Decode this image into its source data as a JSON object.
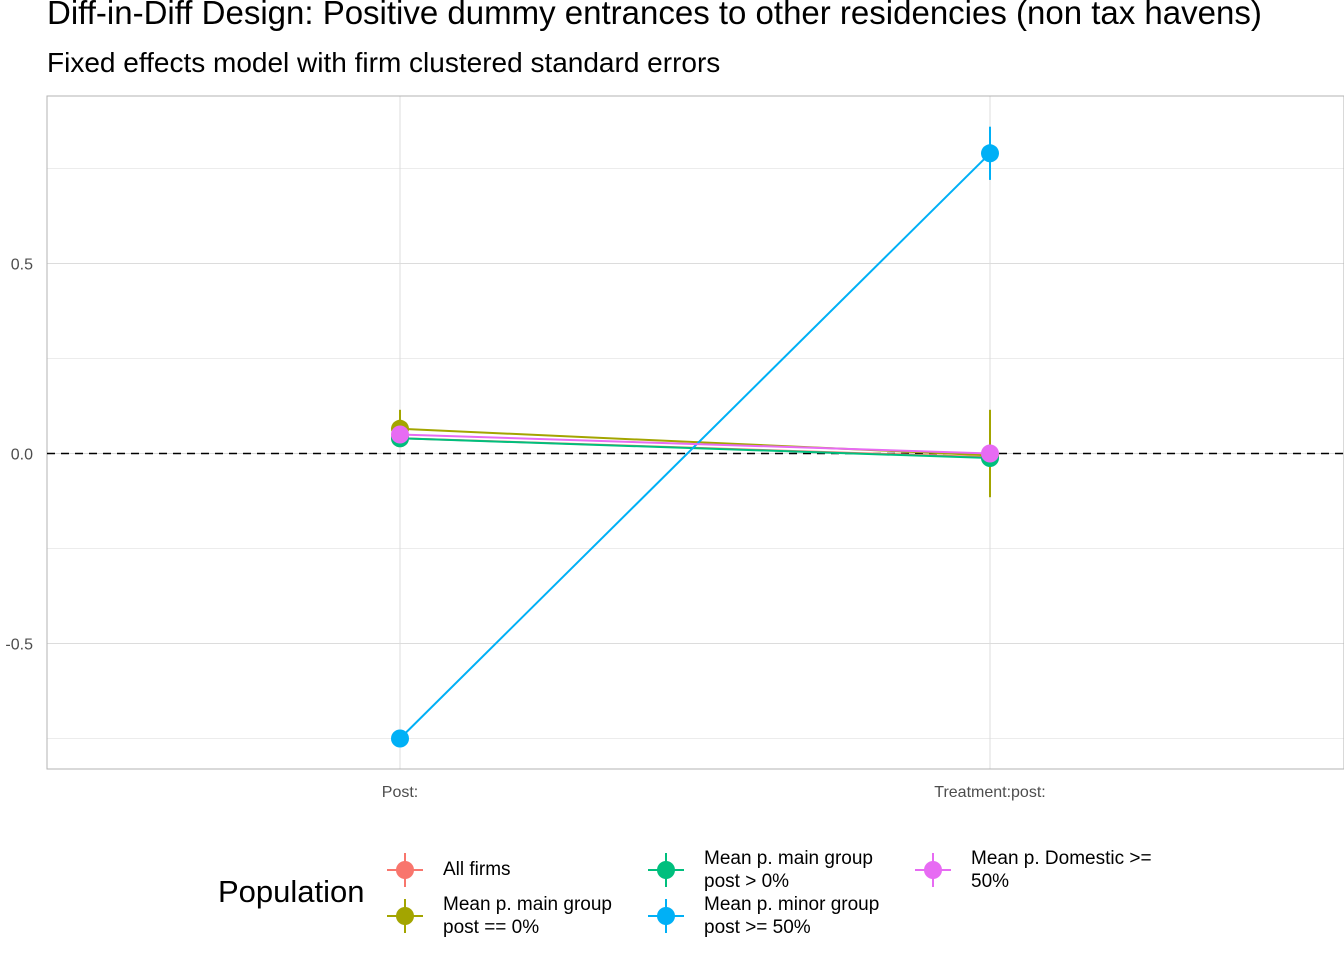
{
  "title": "Diff-in-Diff Design: Positive dummy entrances to other residencies (non tax havens)",
  "subtitle": "Fixed effects model with firm clustered standard errors",
  "chart_data": {
    "type": "line",
    "categories": [
      "Post:",
      "Treatment:post:"
    ],
    "y_ticks": [
      -0.5,
      0.0,
      0.5
    ],
    "y_tick_labels": [
      "-0.5",
      "0.0",
      "0.5"
    ],
    "ylim": [
      -0.83,
      0.94
    ],
    "reference_line": 0,
    "grid": true,
    "legend_position": "bottom",
    "legend_title": "Population",
    "series": [
      {
        "name": "All firms",
        "color": "#F8766D",
        "values": [
          0.04,
          -0.01
        ],
        "ci_low": [
          0.02,
          -0.03
        ],
        "ci_high": [
          0.06,
          0.01
        ]
      },
      {
        "name": "Mean p. main group\npost == 0%",
        "color": "#A3A500",
        "values": [
          0.065,
          -0.005
        ],
        "ci_low": [
          0.02,
          -0.115
        ],
        "ci_high": [
          0.115,
          0.115
        ]
      },
      {
        "name": "Mean p. main group\npost > 0%",
        "color": "#00BF7D",
        "values": [
          0.04,
          -0.012
        ],
        "ci_low": [
          0.025,
          -0.03
        ],
        "ci_high": [
          0.055,
          0.005
        ]
      },
      {
        "name": "Mean p. minor group\npost >= 50%",
        "color": "#00B0F6",
        "values": [
          -0.75,
          0.79
        ],
        "ci_low": [
          -0.76,
          0.72
        ],
        "ci_high": [
          -0.74,
          0.86
        ]
      },
      {
        "name": "Mean p. Domestic >=\n50%",
        "color": "#E76BF3",
        "values": [
          0.05,
          0.0
        ],
        "ci_low": [
          0.04,
          -0.015
        ],
        "ci_high": [
          0.06,
          0.015
        ]
      }
    ]
  }
}
